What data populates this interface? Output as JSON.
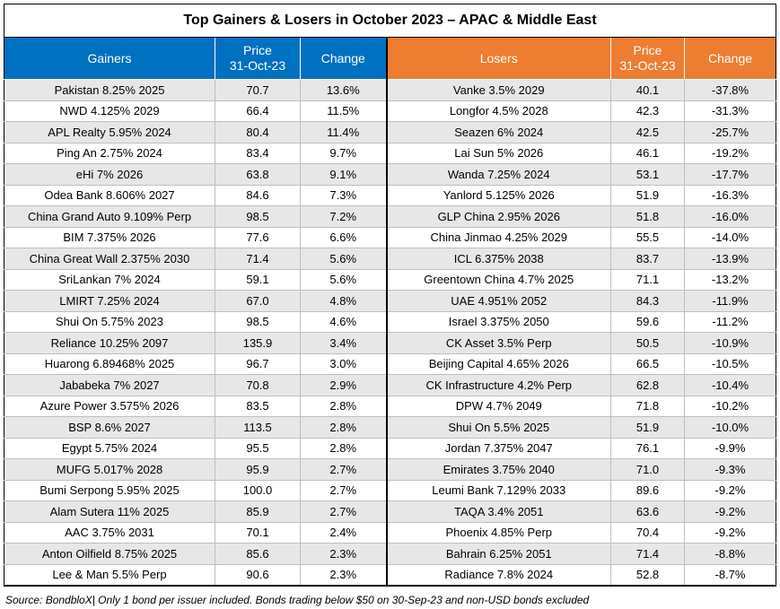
{
  "title": "Top Gainers & Losers in October 2023 – APAC & Middle East",
  "headers": {
    "gainers": "Gainers",
    "price_line1": "Price",
    "price_line2": "31-Oct-23",
    "change": "Change",
    "losers": "Losers"
  },
  "colors": {
    "gainers_header": "#0070c0",
    "losers_header": "#ed7d31",
    "row_shade": "#e7e7e7"
  },
  "rows": [
    {
      "g": "Pakistan 8.25% 2025",
      "gp": "70.7",
      "gc": "13.6%",
      "l": "Vanke 3.5% 2029",
      "lp": "40.1",
      "lc": "-37.8%"
    },
    {
      "g": "NWD 4.125% 2029",
      "gp": "66.4",
      "gc": "11.5%",
      "l": "Longfor 4.5% 2028",
      "lp": "42.3",
      "lc": "-31.3%"
    },
    {
      "g": "APL Realty 5.95% 2024",
      "gp": "80.4",
      "gc": "11.4%",
      "l": "Seazen 6% 2024",
      "lp": "42.5",
      "lc": "-25.7%"
    },
    {
      "g": "Ping An 2.75% 2024",
      "gp": "83.4",
      "gc": "9.7%",
      "l": "Lai Sun 5% 2026",
      "lp": "46.1",
      "lc": "-19.2%"
    },
    {
      "g": "eHi 7% 2026",
      "gp": "63.8",
      "gc": "9.1%",
      "l": "Wanda 7.25% 2024",
      "lp": "53.1",
      "lc": "-17.7%"
    },
    {
      "g": "Odea Bank 8.606% 2027",
      "gp": "84.6",
      "gc": "7.3%",
      "l": "Yanlord 5.125% 2026",
      "lp": "51.9",
      "lc": "-16.3%"
    },
    {
      "g": "China Grand Auto 9.109% Perp",
      "gp": "98.5",
      "gc": "7.2%",
      "l": "GLP China 2.95% 2026",
      "lp": "51.8",
      "lc": "-16.0%"
    },
    {
      "g": "BIM 7.375% 2026",
      "gp": "77.6",
      "gc": "6.6%",
      "l": "China Jinmao 4.25% 2029",
      "lp": "55.5",
      "lc": "-14.0%"
    },
    {
      "g": "China Great Wall 2.375% 2030",
      "gp": "71.4",
      "gc": "5.6%",
      "l": "ICL 6.375% 2038",
      "lp": "83.7",
      "lc": "-13.9%"
    },
    {
      "g": "SriLankan 7% 2024",
      "gp": "59.1",
      "gc": "5.6%",
      "l": "Greentown China 4.7% 2025",
      "lp": "71.1",
      "lc": "-13.2%"
    },
    {
      "g": "LMIRT 7.25% 2024",
      "gp": "67.0",
      "gc": "4.8%",
      "l": "UAE 4.951% 2052",
      "lp": "84.3",
      "lc": "-11.9%"
    },
    {
      "g": "Shui On 5.75% 2023",
      "gp": "98.5",
      "gc": "4.6%",
      "l": "Israel 3.375% 2050",
      "lp": "59.6",
      "lc": "-11.2%"
    },
    {
      "g": "Reliance 10.25% 2097",
      "gp": "135.9",
      "gc": "3.4%",
      "l": "CK Asset 3.5% Perp",
      "lp": "50.5",
      "lc": "-10.9%"
    },
    {
      "g": "Huarong 6.89468% 2025",
      "gp": "96.7",
      "gc": "3.0%",
      "l": "Beijing Capital 4.65% 2026",
      "lp": "66.5",
      "lc": "-10.5%"
    },
    {
      "g": "Jababeka 7% 2027",
      "gp": "70.8",
      "gc": "2.9%",
      "l": "CK Infrastructure 4.2% Perp",
      "lp": "62.8",
      "lc": "-10.4%"
    },
    {
      "g": "Azure Power 3.575% 2026",
      "gp": "83.5",
      "gc": "2.8%",
      "l": "DPW 4.7% 2049",
      "lp": "71.8",
      "lc": "-10.2%"
    },
    {
      "g": "BSP 8.6% 2027",
      "gp": "113.5",
      "gc": "2.8%",
      "l": "Shui On 5.5% 2025",
      "lp": "51.9",
      "lc": "-10.0%"
    },
    {
      "g": "Egypt 5.75% 2024",
      "gp": "95.5",
      "gc": "2.8%",
      "l": "Jordan 7.375% 2047",
      "lp": "76.1",
      "lc": "-9.9%"
    },
    {
      "g": "MUFG 5.017% 2028",
      "gp": "95.9",
      "gc": "2.7%",
      "l": "Emirates 3.75% 2040",
      "lp": "71.0",
      "lc": "-9.3%"
    },
    {
      "g": "Bumi Serpong 5.95% 2025",
      "gp": "100.0",
      "gc": "2.7%",
      "l": "Leumi Bank 7.129% 2033",
      "lp": "89.6",
      "lc": "-9.2%"
    },
    {
      "g": "Alam Sutera 11% 2025",
      "gp": "85.9",
      "gc": "2.7%",
      "l": "TAQA 3.4% 2051",
      "lp": "63.6",
      "lc": "-9.2%"
    },
    {
      "g": "AAC 3.75% 2031",
      "gp": "70.1",
      "gc": "2.4%",
      "l": "Phoenix 4.85% Perp",
      "lp": "70.4",
      "lc": "-9.2%"
    },
    {
      "g": "Anton Oilfield 8.75% 2025",
      "gp": "85.6",
      "gc": "2.3%",
      "l": "Bahrain 6.25% 2051",
      "lp": "71.4",
      "lc": "-8.8%"
    },
    {
      "g": "Lee & Man 5.5% Perp",
      "gp": "90.6",
      "gc": "2.3%",
      "l": "Radiance 7.8% 2024",
      "lp": "52.8",
      "lc": "-8.7%"
    }
  ],
  "source_note": "Source: BondbloX| Only 1 bond per issuer included. Bonds trading below $50 on 30-Sep-23 and non-USD bonds excluded"
}
